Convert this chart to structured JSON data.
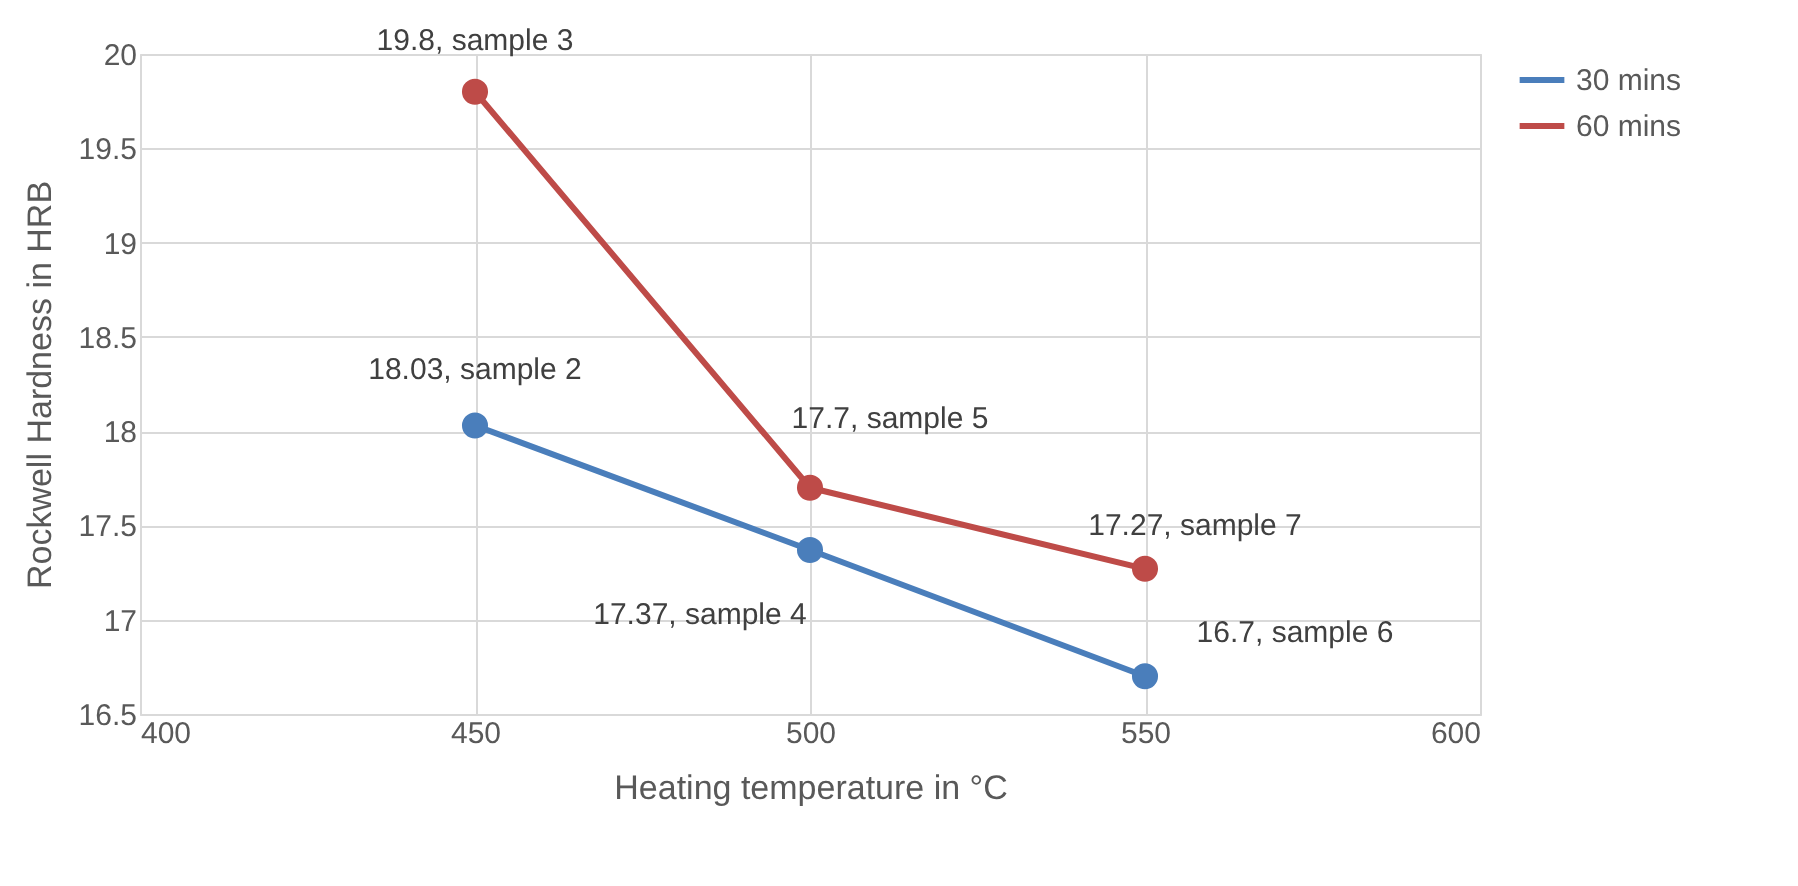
{
  "chart_data": {
    "type": "line",
    "xlabel": "Heating temperature in °C",
    "ylabel": "Rockwell Hardness in HRB",
    "x": [
      450,
      500,
      550
    ],
    "series": [
      {
        "name": "30 mins",
        "color": "#4a7ebb",
        "values": [
          18.03,
          17.37,
          16.7
        ]
      },
      {
        "name": "60 mins",
        "color": "#be4b48",
        "values": [
          19.8,
          17.7,
          17.27
        ]
      }
    ],
    "xlim": [
      400,
      600
    ],
    "xticks": [
      400,
      450,
      500,
      550,
      600
    ],
    "ylim": [
      16.5,
      20
    ],
    "yticks": [
      16.5,
      17,
      17.5,
      18,
      18.5,
      19,
      19.5,
      20
    ],
    "grid": true,
    "legend": "right",
    "marker": "circle",
    "annotations": [
      {
        "text": "19.8, sample 3",
        "x": 450,
        "y": 19.8
      },
      {
        "text": "18.03, sample 2",
        "x": 450,
        "y": 18.03
      },
      {
        "text": "17.7, sample 5",
        "x": 500,
        "y": 17.7
      },
      {
        "text": "17.27, sample 7",
        "x": 550,
        "y": 17.27
      },
      {
        "text": "17.37, sample 4",
        "x": 500,
        "y": 17.37
      },
      {
        "text": "16.7, sample 6",
        "x": 550,
        "y": 16.7
      }
    ]
  }
}
